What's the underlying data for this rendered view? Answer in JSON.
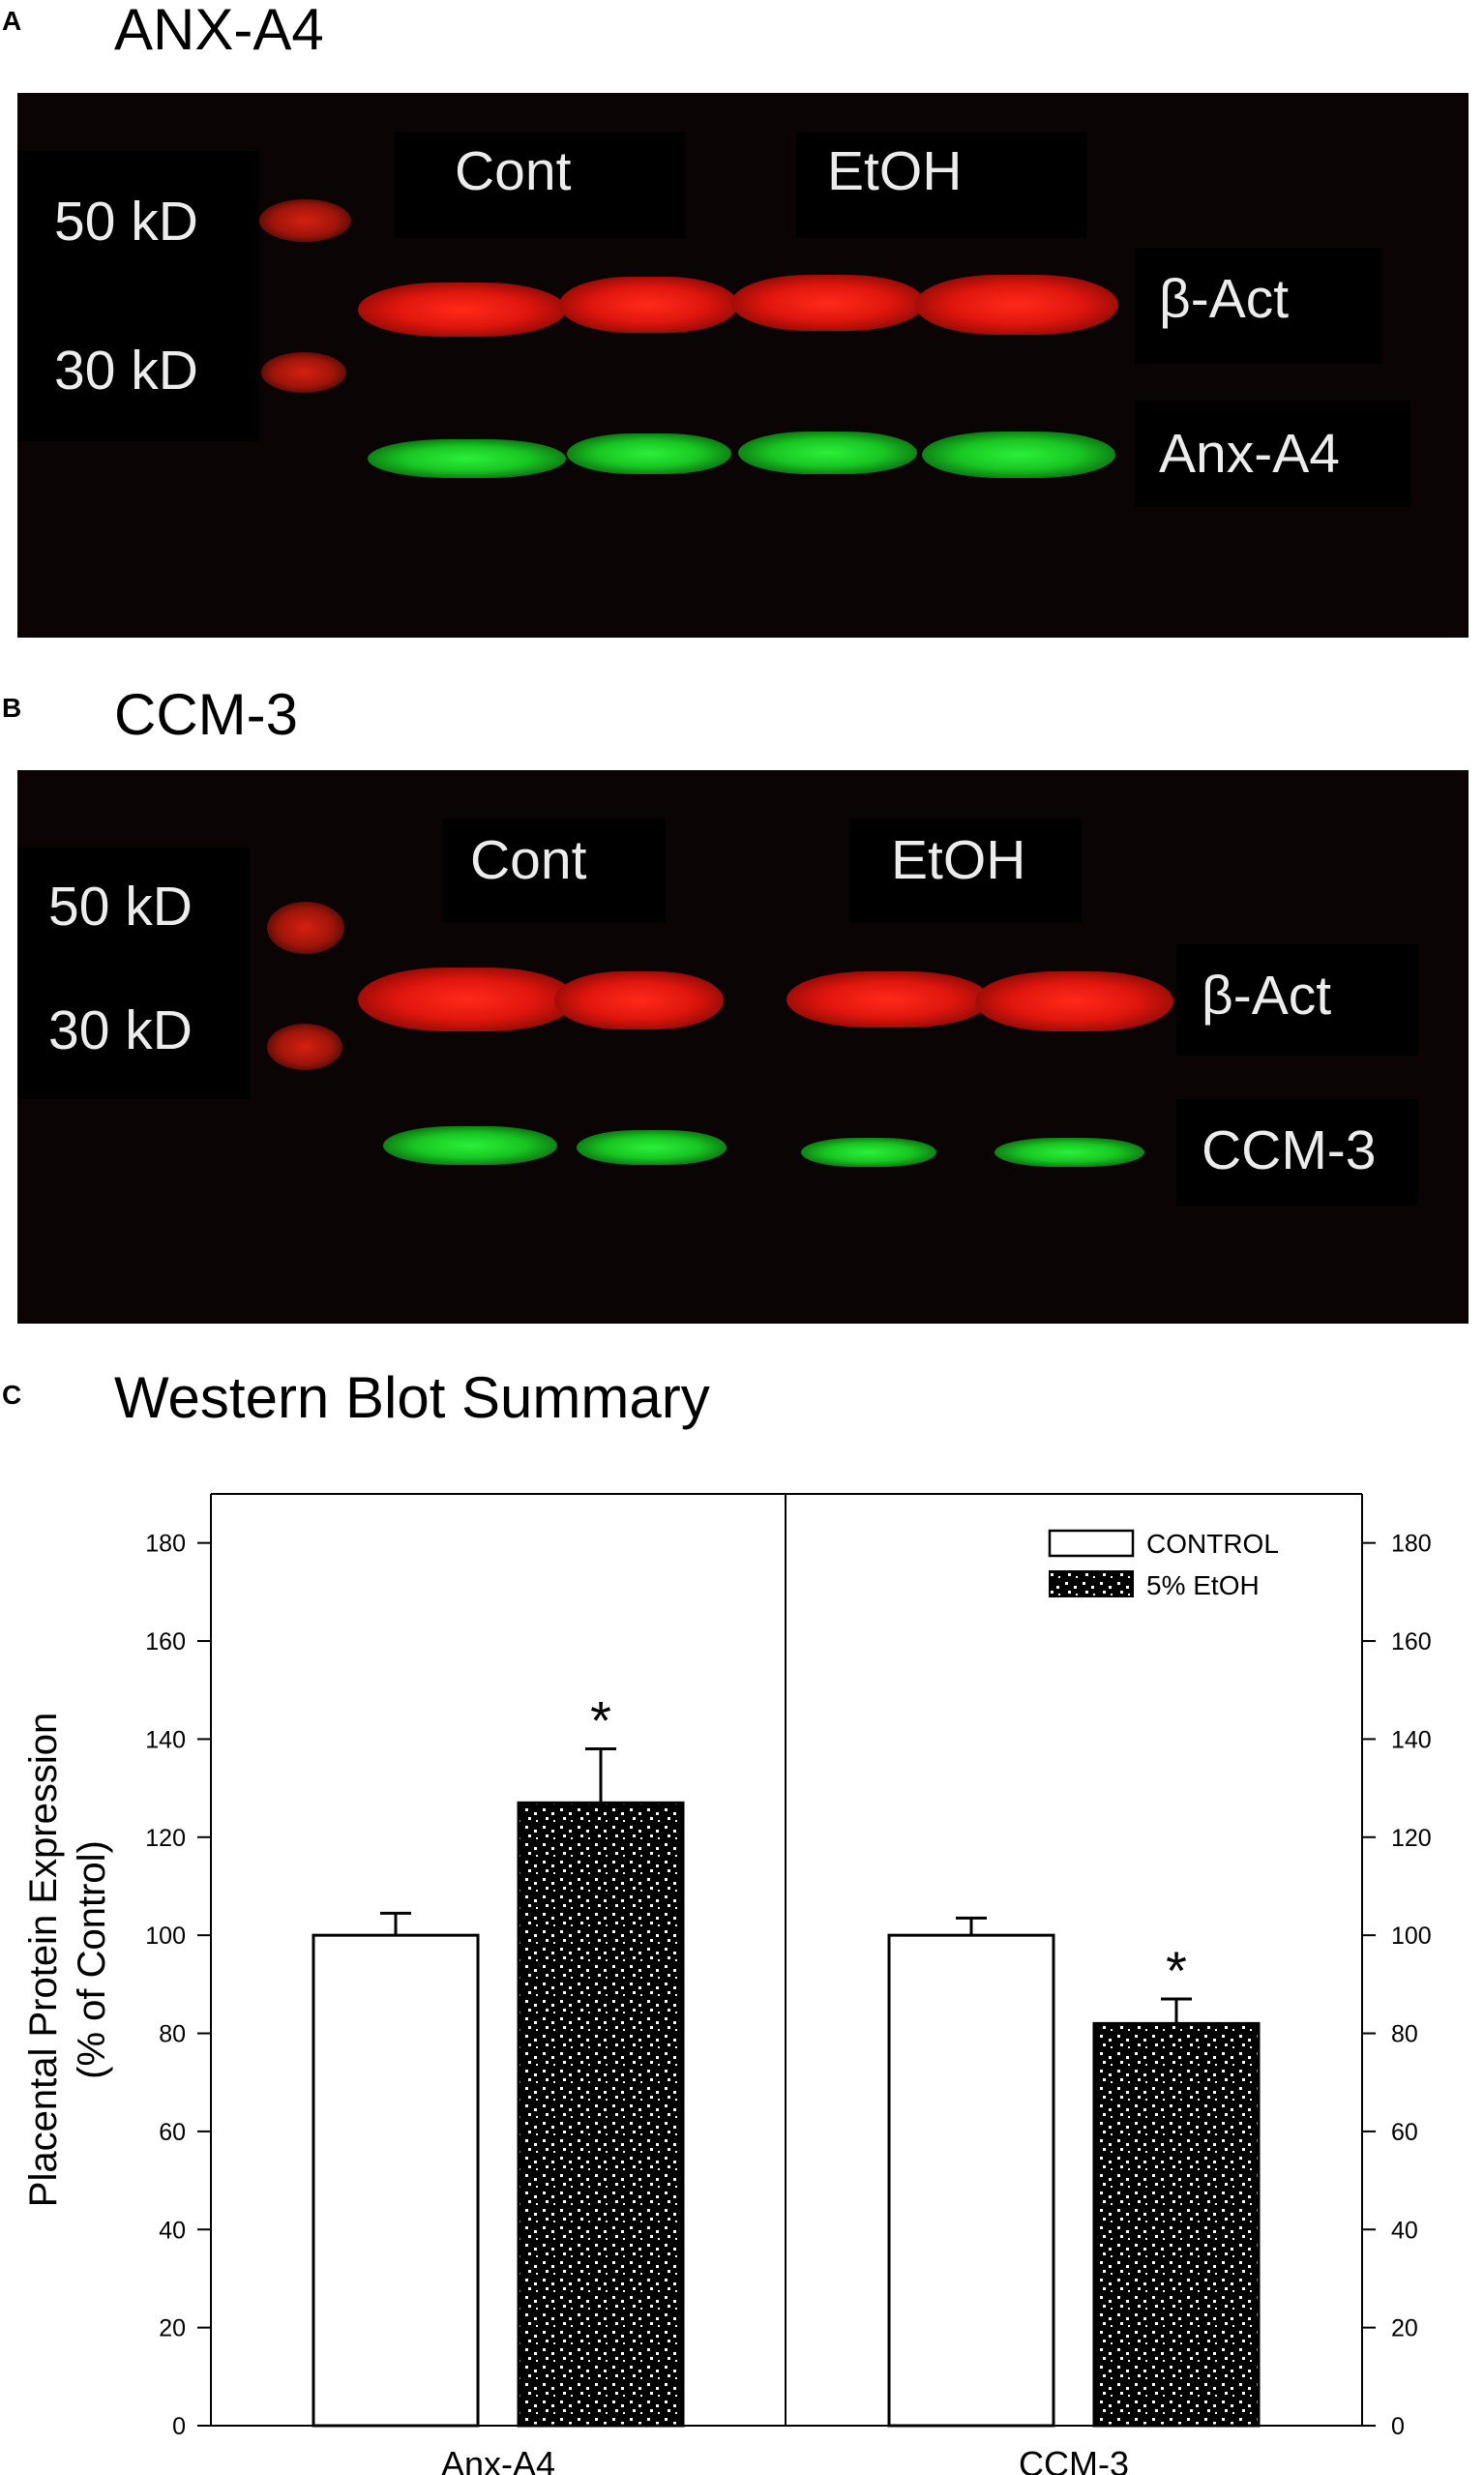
{
  "panels": {
    "a": {
      "letter": "A",
      "title": "ANX-A4",
      "marker_50": "50 kD",
      "marker_30": "30 kD",
      "group_cont": "Cont",
      "group_etoh": "EtOH",
      "band_top": "β-Act",
      "band_bottom": "Anx-A4"
    },
    "b": {
      "letter": "B",
      "title": "CCM-3",
      "marker_50": "50 kD",
      "marker_30": "30 kD",
      "group_cont": "Cont",
      "group_etoh": "EtOH",
      "band_top": "β-Act",
      "band_bottom": "CCM-3"
    },
    "c": {
      "letter": "C",
      "title": "Western Blot Summary"
    }
  },
  "colors": {
    "actin_band": "#e0160d",
    "target_band": "#18c622",
    "blot_background": "#0a0404"
  },
  "chart_data": {
    "type": "bar",
    "categories": [
      "Anx-A4",
      "CCM-3"
    ],
    "series": [
      {
        "name": "CONTROL",
        "values": [
          100,
          100
        ],
        "errors": [
          4.5,
          3.5
        ],
        "fill": "white"
      },
      {
        "name": "5% EtOH",
        "values": [
          127,
          82
        ],
        "errors": [
          11,
          5
        ],
        "fill": "dotted-pattern",
        "significance": [
          "*",
          "*"
        ]
      }
    ],
    "ylabel_line1": "Placental Protein Expression",
    "ylabel_line2": "(% of Control)",
    "xlabel": "",
    "ylim": [
      0,
      190
    ],
    "yticks": [
      0,
      20,
      40,
      60,
      80,
      100,
      120,
      140,
      160,
      180
    ],
    "right_axis_ticks": [
      0,
      20,
      40,
      60,
      80,
      100,
      120,
      140,
      160,
      180
    ],
    "legend_position": "top-right",
    "grid": false
  }
}
